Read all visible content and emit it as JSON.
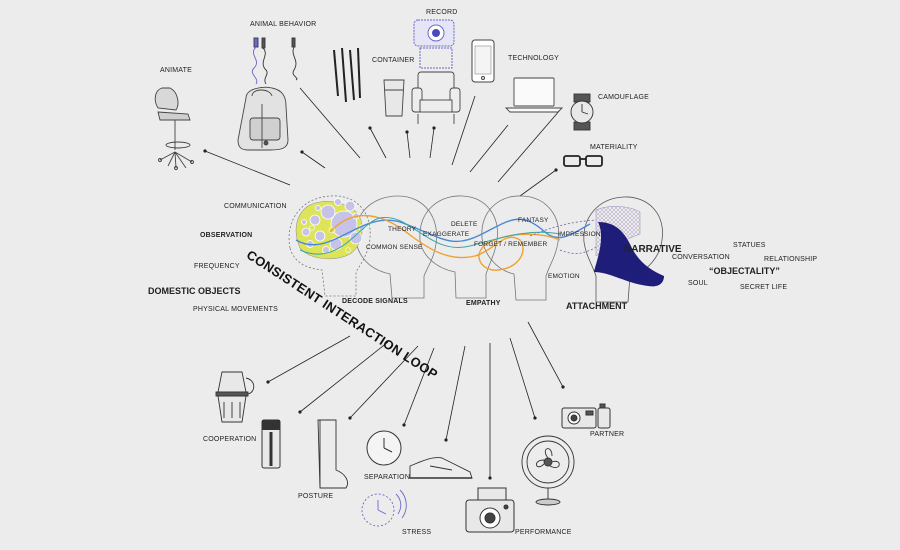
{
  "center": {
    "loop_title": "CONSISTENT INTERACTION LOOP",
    "words": {
      "theory": "THEORY",
      "delete": "DELETE",
      "fantasy": "FANTASY",
      "exaggerate": "EXAGGERATE",
      "common_sense": "COMMON SENSE",
      "forget_remember": "FORGET / REMEMBER",
      "impression": "IMPRESSION",
      "emotion": "EMOTION",
      "decode_signals": "DECODE SIGNALS",
      "empathy": "EMPATHY",
      "attachment": "ATTACHMENT",
      "narrative": "NARRATIVE"
    }
  },
  "left_labels": {
    "communication": "COMMUNICATION",
    "observation": "OBSERVATION",
    "frequency": "FREQUENCY",
    "domestic_objects": "DOMESTIC OBJECTS",
    "physical_movements": "PHYSICAL MOVEMENTS"
  },
  "right_labels": {
    "conversation": "CONVERSATION",
    "statues": "STATUES",
    "relationship": "RELATIONSHIP",
    "objectality": "“OBJECTALITY”",
    "soul": "SOUL",
    "secret_life": "SECRET LIFE"
  },
  "top_labels": {
    "animate": "ANIMATE",
    "animal_behavior": "ANIMAL BEHAVIOR",
    "record": "RECORD",
    "container": "CONTAINER",
    "technology": "TECHNOLOGY",
    "camouflage": "CAMOUFLAGE",
    "materiality": "MATERIALITY"
  },
  "bottom_labels": {
    "cooperation": "COOPERATION",
    "posture": "POSTURE",
    "separation": "SEPARATION",
    "stress": "STRESS",
    "performance": "PERFORMANCE",
    "partner": "PARTNER"
  },
  "colors": {
    "background": "#ececec",
    "line": "#222222",
    "blue_path": "#4a88d6",
    "orange_path": "#f0a030",
    "navy_fill": "#1e1e7a",
    "yellow_fill": "#dde45a",
    "lavender_fill": "#c7c3e8",
    "purple_dash": "#7a5aa8"
  },
  "icons": [
    "office-chair-icon",
    "backpack-icon",
    "usb-cable-icon",
    "pens-icon",
    "cup-icon",
    "webcam-icon",
    "armchair-icon",
    "smartphone-icon",
    "laptop-icon",
    "wristwatch-icon",
    "glasses-icon",
    "moka-pot-icon",
    "thermos-icon",
    "boot-icon",
    "wall-clock-icon",
    "sneaker-icon",
    "ringing-clock-icon",
    "instant-camera-icon",
    "desk-fan-icon",
    "compact-camera-icon",
    "human-head-icon",
    "brain-icon"
  ]
}
